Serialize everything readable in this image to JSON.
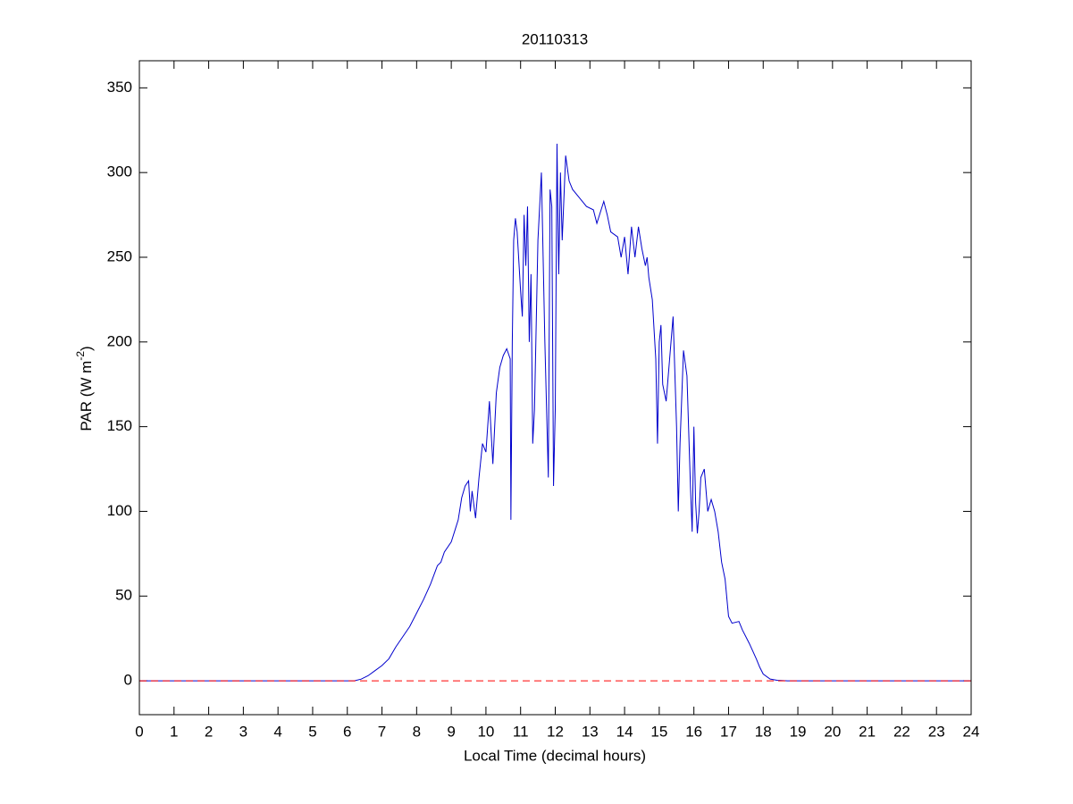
{
  "chart_data": {
    "type": "line",
    "title": "20110313",
    "xlabel": "Local Time (decimal hours)",
    "ylabel": [
      "PAR (W m",
      "-2",
      ")"
    ],
    "x": [
      0,
      6.2,
      6.4,
      6.6,
      6.8,
      7.0,
      7.2,
      7.4,
      7.6,
      7.8,
      8.0,
      8.2,
      8.4,
      8.6,
      8.7,
      8.8,
      9.0,
      9.2,
      9.3,
      9.4,
      9.5,
      9.55,
      9.6,
      9.7,
      9.8,
      9.9,
      10.0,
      10.05,
      10.1,
      10.2,
      10.3,
      10.4,
      10.5,
      10.6,
      10.7,
      10.72,
      10.76,
      10.8,
      10.85,
      10.9,
      11.0,
      11.05,
      11.1,
      11.15,
      11.2,
      11.25,
      11.3,
      11.35,
      11.4,
      11.5,
      11.6,
      11.65,
      11.7,
      11.8,
      11.85,
      11.9,
      11.95,
      12.0,
      12.05,
      12.1,
      12.15,
      12.2,
      12.3,
      12.4,
      12.5,
      12.7,
      12.9,
      13.1,
      13.2,
      13.4,
      13.5,
      13.6,
      13.8,
      13.9,
      14.0,
      14.1,
      14.2,
      14.3,
      14.4,
      14.5,
      14.6,
      14.65,
      14.7,
      14.8,
      14.9,
      14.95,
      15.0,
      15.05,
      15.1,
      15.2,
      15.3,
      15.4,
      15.5,
      15.55,
      15.6,
      15.7,
      15.8,
      15.9,
      15.95,
      16.0,
      16.05,
      16.1,
      16.15,
      16.2,
      16.3,
      16.4,
      16.5,
      16.6,
      16.7,
      16.8,
      16.9,
      17.0,
      17.1,
      17.3,
      17.4,
      17.6,
      17.8,
      17.9,
      18.0,
      18.2,
      18.4,
      18.7,
      24
    ],
    "values": [
      0,
      0,
      1,
      3,
      6,
      9,
      13,
      20,
      26,
      32,
      40,
      48,
      57,
      68,
      70,
      76,
      82,
      95,
      108,
      115,
      118,
      100,
      112,
      96,
      120,
      140,
      135,
      150,
      165,
      128,
      170,
      185,
      192,
      196,
      190,
      95,
      200,
      260,
      273,
      265,
      230,
      215,
      275,
      245,
      280,
      200,
      240,
      140,
      160,
      260,
      300,
      250,
      200,
      120,
      290,
      280,
      115,
      160,
      317,
      240,
      300,
      260,
      310,
      295,
      290,
      285,
      280,
      278,
      270,
      283,
      275,
      265,
      262,
      250,
      262,
      240,
      268,
      250,
      268,
      255,
      245,
      250,
      238,
      225,
      190,
      140,
      200,
      210,
      175,
      165,
      190,
      215,
      150,
      100,
      140,
      195,
      180,
      115,
      88,
      150,
      105,
      87,
      100,
      120,
      125,
      100,
      107,
      100,
      88,
      70,
      60,
      38,
      34,
      35,
      30,
      22,
      13,
      8,
      4,
      1,
      0.3,
      0,
      0
    ],
    "color": "#0000cc",
    "hline": {
      "value": 0,
      "color": "#ff0000",
      "dashed": true
    },
    "xlim": [
      0,
      24
    ],
    "xticks": [
      0,
      1,
      2,
      3,
      4,
      5,
      6,
      7,
      8,
      9,
      10,
      11,
      12,
      13,
      14,
      15,
      16,
      17,
      18,
      19,
      20,
      21,
      22,
      23,
      24
    ],
    "ylim": [
      -20,
      366
    ],
    "yticks": [
      0,
      50,
      100,
      150,
      200,
      250,
      300,
      350
    ]
  }
}
